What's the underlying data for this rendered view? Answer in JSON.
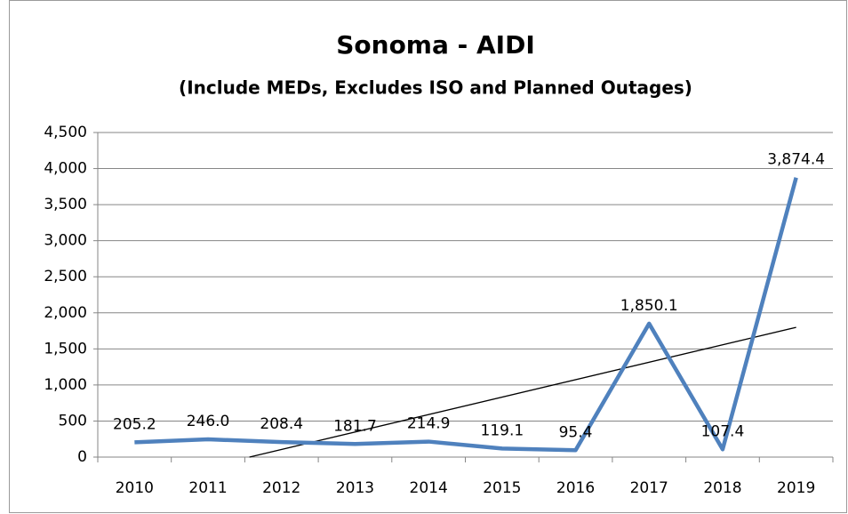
{
  "chart_data": {
    "type": "line",
    "title": "Sonoma - AIDI",
    "subtitle": "(Include MEDs, Excludes ISO and Planned Outages)",
    "categories": [
      "2010",
      "2011",
      "2012",
      "2013",
      "2014",
      "2015",
      "2016",
      "2017",
      "2018",
      "2019"
    ],
    "values": [
      205.2,
      246.0,
      208.4,
      181.7,
      214.9,
      119.1,
      95.4,
      1850.1,
      107.4,
      3874.4
    ],
    "value_labels": [
      "205.2",
      "246.0",
      "208.4",
      "181.7",
      "214.9",
      "119.1",
      "95.4",
      "1,850.1",
      "107.4",
      "3,874.4"
    ],
    "color": "#4f81bd",
    "trendline": "linear",
    "ylim": [
      0,
      4500
    ],
    "yticks": [
      0,
      500,
      {
        "value": 1000,
        "label": "1,000"
      },
      {
        "value": 1500,
        "label": "1,500"
      },
      {
        "value": 2000,
        "label": "2,000"
      },
      {
        "value": 2500,
        "label": "2,500"
      },
      {
        "value": 3000,
        "label": "3,000"
      },
      {
        "value": 3500,
        "label": "3,500"
      },
      {
        "value": 4000,
        "label": "4,000"
      },
      {
        "value": 4500,
        "label": "4,500"
      }
    ],
    "grid": true
  }
}
